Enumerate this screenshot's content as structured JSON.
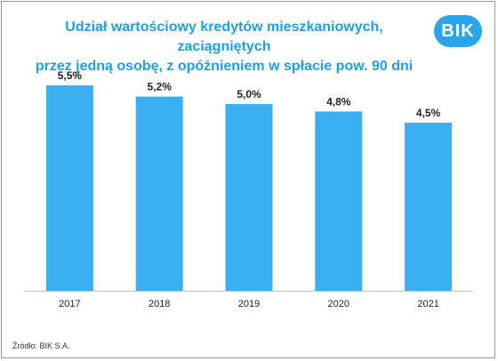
{
  "chart_data": {
    "type": "bar",
    "title": "Udział wartościowy kredytów mieszkaniowych, zaciągniętych przez jedną osobę, z opóźnieniem w spłacie pow. 90 dni",
    "title_lines": [
      "Udział wartościowy kredytów mieszkaniowych, zaciągniętych",
      "przez jedną osobę, z opóźnieniem w spłacie pow. 90 dni"
    ],
    "categories": [
      "2017",
      "2018",
      "2019",
      "2020",
      "2021"
    ],
    "values": [
      5.5,
      5.2,
      5.0,
      4.8,
      4.5
    ],
    "value_labels": [
      "5,5%",
      "5,2%",
      "5,0%",
      "4,8%",
      "4,5%"
    ],
    "ylim": [
      0,
      5.5
    ],
    "grid": false,
    "legend": "none",
    "bar_color": "#3ab0f2"
  },
  "logo": {
    "text": "BIK",
    "color": "#2aa4ea"
  },
  "source": "Źródło: BIK S.A."
}
